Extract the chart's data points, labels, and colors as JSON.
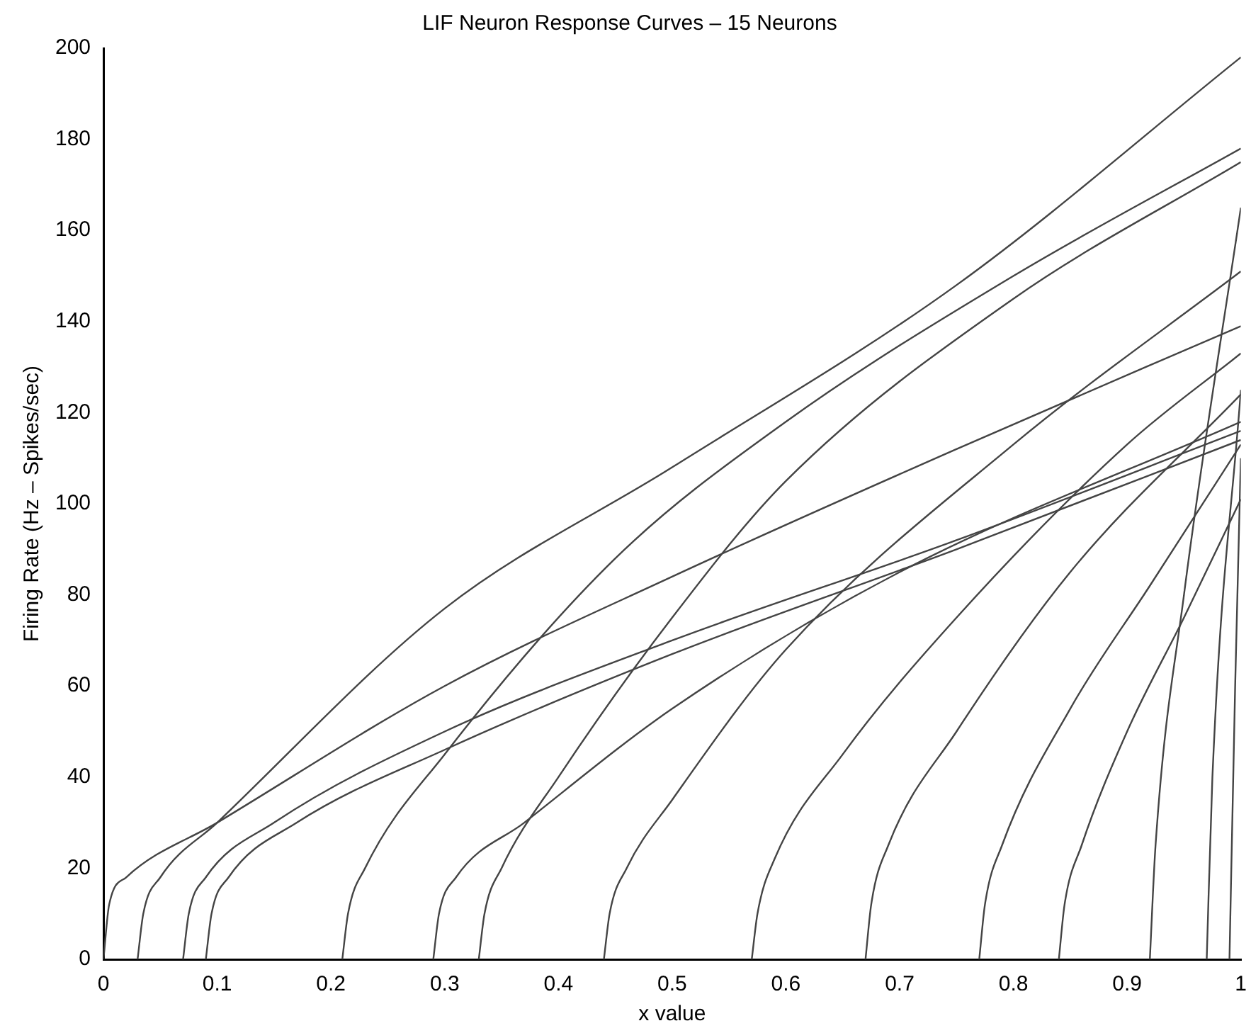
{
  "chart_data": {
    "type": "line",
    "title": "LIF Neuron Response Curves – 15 Neurons",
    "xlabel": "x value",
    "ylabel": "Firing Rate (Hz – Spikes/sec)",
    "xlim": [
      0,
      1
    ],
    "xticks": [
      0,
      0.1,
      0.2,
      0.3,
      0.4,
      0.5,
      0.6,
      0.7,
      0.8,
      0.9,
      1
    ],
    "ylim": [
      0,
      200
    ],
    "yticks": [
      0,
      20,
      40,
      60,
      80,
      100,
      120,
      140,
      160,
      180,
      200
    ],
    "grid": false,
    "legend": false,
    "marker": "none",
    "line_style": "solid",
    "series": [
      {
        "color": "#444444",
        "x": [
          0,
          0.005,
          0.02,
          0.1,
          0.3,
          0.5,
          0.75,
          1
        ],
        "values": [
          0,
          12,
          18,
          30,
          60,
          84,
          112,
          139
        ]
      },
      {
        "color": "#444444",
        "x": [
          0.03,
          0.035,
          0.05,
          0.1,
          0.3,
          0.5,
          0.75,
          1
        ],
        "values": [
          0,
          10,
          18,
          30,
          77,
          108,
          148,
          198
        ]
      },
      {
        "color": "#444444",
        "x": [
          0.07,
          0.075,
          0.09,
          0.15,
          0.3,
          0.5,
          0.75,
          1
        ],
        "values": [
          0,
          10,
          18,
          30,
          50,
          70,
          92,
          116
        ]
      },
      {
        "color": "#444444",
        "x": [
          0.09,
          0.095,
          0.11,
          0.17,
          0.3,
          0.5,
          0.75,
          1
        ],
        "values": [
          0,
          10,
          18,
          30,
          46,
          67,
          90,
          114
        ]
      },
      {
        "color": "#444444",
        "x": [
          0.21,
          0.215,
          0.23,
          0.3,
          0.45,
          0.6,
          0.8,
          1
        ],
        "values": [
          0,
          10,
          20,
          45,
          88,
          118,
          150,
          178
        ]
      },
      {
        "color": "#444444",
        "x": [
          0.29,
          0.295,
          0.31,
          0.37,
          0.5,
          0.7,
          1
        ],
        "values": [
          0,
          10,
          18,
          30,
          55,
          85,
          118
        ]
      },
      {
        "color": "#444444",
        "x": [
          0.33,
          0.335,
          0.35,
          0.4,
          0.5,
          0.6,
          0.8,
          1
        ],
        "values": [
          0,
          10,
          20,
          40,
          75,
          105,
          145,
          175
        ]
      },
      {
        "color": "#444444",
        "x": [
          0.44,
          0.445,
          0.46,
          0.5,
          0.6,
          0.8,
          1
        ],
        "values": [
          0,
          10,
          20,
          35,
          68,
          113,
          151
        ]
      },
      {
        "color": "#444444",
        "x": [
          0.57,
          0.575,
          0.59,
          0.65,
          0.75,
          0.9,
          1
        ],
        "values": [
          0,
          10,
          22,
          45,
          75,
          113,
          133
        ]
      },
      {
        "color": "#444444",
        "x": [
          0.67,
          0.675,
          0.69,
          0.75,
          0.85,
          1
        ],
        "values": [
          0,
          12,
          25,
          50,
          85,
          124
        ]
      },
      {
        "color": "#444444",
        "x": [
          0.77,
          0.775,
          0.79,
          0.85,
          0.92,
          1
        ],
        "values": [
          0,
          12,
          25,
          55,
          82,
          113
        ]
      },
      {
        "color": "#444444",
        "x": [
          0.84,
          0.845,
          0.86,
          0.9,
          0.95,
          1
        ],
        "values": [
          0,
          12,
          25,
          50,
          75,
          101
        ]
      },
      {
        "color": "#444444",
        "x": [
          0.92,
          0.925,
          0.95,
          1
        ],
        "values": [
          0,
          25,
          80,
          165
        ]
      },
      {
        "color": "#444444",
        "x": [
          0.97,
          0.975,
          1
        ],
        "values": [
          0,
          40,
          125
        ]
      },
      {
        "color": "#444444",
        "x": [
          0.99,
          0.995,
          1
        ],
        "values": [
          0,
          60,
          110
        ]
      }
    ]
  }
}
